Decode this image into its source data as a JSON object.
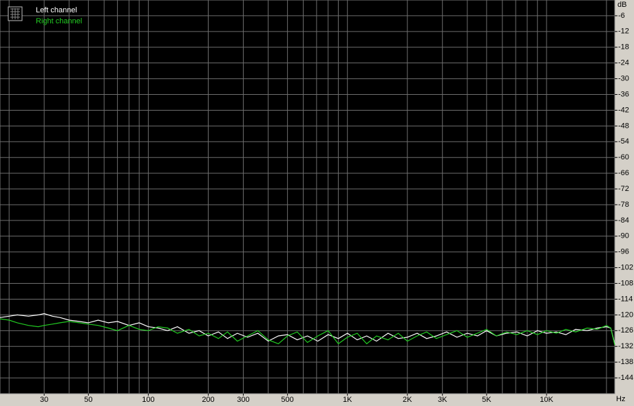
{
  "chart_data": {
    "type": "line",
    "y_unit": "dB",
    "x_unit": "Hz",
    "log_x": true,
    "grid": true,
    "legend": "top-left",
    "xlim": [
      18,
      22000
    ],
    "ylim": [
      -150,
      0
    ],
    "xticks": [
      30,
      50,
      100,
      200,
      300,
      500,
      {
        "value": 1000,
        "label": "1K"
      },
      {
        "value": 2000,
        "label": "2K"
      },
      {
        "value": 3000,
        "label": "3K"
      },
      {
        "value": 5000,
        "label": "5K"
      },
      {
        "value": 10000,
        "label": "10K"
      }
    ],
    "x_grid": [
      20,
      30,
      40,
      50,
      60,
      70,
      80,
      90,
      100,
      200,
      300,
      400,
      500,
      600,
      700,
      800,
      900,
      1000,
      2000,
      3000,
      4000,
      5000,
      6000,
      7000,
      8000,
      9000,
      10000,
      20000
    ],
    "yticks": [
      -144,
      -138,
      -132,
      -126,
      -120,
      -114,
      -108,
      -102,
      -96,
      -90,
      -84,
      -78,
      -72,
      -66,
      -60,
      -54,
      -48,
      -42,
      -36,
      -30,
      -24,
      -18,
      -12,
      -6
    ],
    "x": [
      18,
      20,
      22,
      25,
      28,
      30,
      33,
      36,
      40,
      45,
      50,
      56,
      63,
      70,
      80,
      90,
      100,
      112,
      125,
      140,
      160,
      180,
      200,
      225,
      250,
      280,
      315,
      355,
      400,
      450,
      500,
      560,
      630,
      710,
      800,
      900,
      1000,
      1120,
      1250,
      1400,
      1600,
      1800,
      2000,
      2240,
      2500,
      2800,
      3150,
      3550,
      4000,
      4500,
      5000,
      5600,
      6300,
      7100,
      8000,
      9000,
      10000,
      11200,
      12500,
      14000,
      16000,
      18000,
      20000,
      21000,
      22000
    ],
    "series": [
      {
        "name": "Left channel",
        "color": "#ffffff",
        "values": [
          -121,
          -120.5,
          -120,
          -120.5,
          -120,
          -119.5,
          -120.5,
          -121,
          -122,
          -122.5,
          -123,
          -122,
          -123,
          -122.5,
          -124,
          -123,
          -124.5,
          -125,
          -126,
          -124.5,
          -127,
          -126,
          -128,
          -126.5,
          -129,
          -127,
          -128.5,
          -127,
          -130,
          -128,
          -127.5,
          -129.5,
          -128,
          -130,
          -127.5,
          -129,
          -127,
          -129.5,
          -128,
          -130,
          -127,
          -129,
          -128.5,
          -127,
          -129,
          -128,
          -126.5,
          -128.5,
          -127,
          -128,
          -126,
          -128,
          -127,
          -126.5,
          -128,
          -126,
          -127,
          -126.5,
          -127.5,
          -125.5,
          -126,
          -125,
          -124.5,
          -125,
          -131
        ]
      },
      {
        "name": "Right channel",
        "color": "#22cc22",
        "values": [
          -121.5,
          -122,
          -123,
          -124,
          -124.5,
          -124,
          -123.5,
          -123,
          -122.5,
          -123,
          -123.5,
          -124,
          -125,
          -126,
          -124,
          -125.5,
          -126,
          -124.5,
          -125,
          -127,
          -125.5,
          -128,
          -127,
          -129,
          -126.5,
          -130,
          -128,
          -126,
          -129.5,
          -131,
          -128,
          -126.5,
          -130.5,
          -128,
          -126,
          -131,
          -128.5,
          -127,
          -131,
          -128,
          -129.5,
          -127,
          -130,
          -128,
          -126.5,
          -129,
          -127.5,
          -126,
          -128.5,
          -127,
          -125.5,
          -128,
          -126.5,
          -127.5,
          -126,
          -127.5,
          -126,
          -127,
          -125.5,
          -126.5,
          -125,
          -125.5,
          -124,
          -125,
          -131.5
        ]
      }
    ]
  }
}
